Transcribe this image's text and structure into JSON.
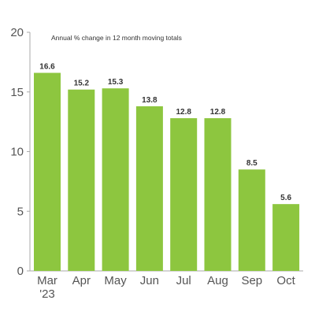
{
  "colors": {
    "bar": "#8dc63f",
    "axis": "#aaaaaa"
  },
  "chart_data": {
    "type": "bar",
    "title": "Annual % change in 12 month moving totals",
    "categories": [
      "Mar\n'23",
      "Apr",
      "May",
      "Jun",
      "Jul",
      "Aug",
      "Sep",
      "Oct"
    ],
    "values": [
      16.6,
      15.2,
      15.3,
      13.8,
      12.8,
      12.8,
      8.5,
      5.6
    ],
    "value_labels": [
      "16.6",
      "15.2",
      "15.3",
      "13.8",
      "12.8",
      "12.8",
      "8.5",
      "5.6"
    ],
    "yticks": [
      0,
      5,
      10,
      15,
      20
    ],
    "ylim": [
      0,
      20
    ],
    "xlabel": "",
    "ylabel": "",
    "grid": false,
    "legend": "none"
  }
}
